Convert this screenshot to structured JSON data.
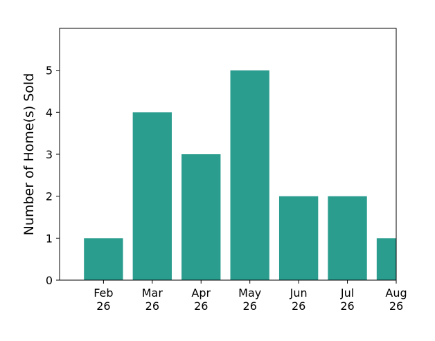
{
  "chart_data": {
    "type": "bar",
    "categories": [
      [
        "Feb",
        "26"
      ],
      [
        "Mar",
        "26"
      ],
      [
        "Apr",
        "26"
      ],
      [
        "May",
        "26"
      ],
      [
        "Jun",
        "26"
      ],
      [
        "Jul",
        "26"
      ],
      [
        "Aug",
        "26"
      ]
    ],
    "values": [
      1,
      4,
      3,
      5,
      2,
      2,
      1
    ],
    "title": "",
    "xlabel": "",
    "ylabel": "Number of Home(s) Sold",
    "ylim": [
      0,
      6
    ],
    "xlim": [
      -0.9,
      6.0
    ],
    "yticks": [
      0,
      1,
      2,
      3,
      4,
      5
    ],
    "grid": false,
    "legend": "none",
    "bar_color": "#2a9d8f"
  }
}
